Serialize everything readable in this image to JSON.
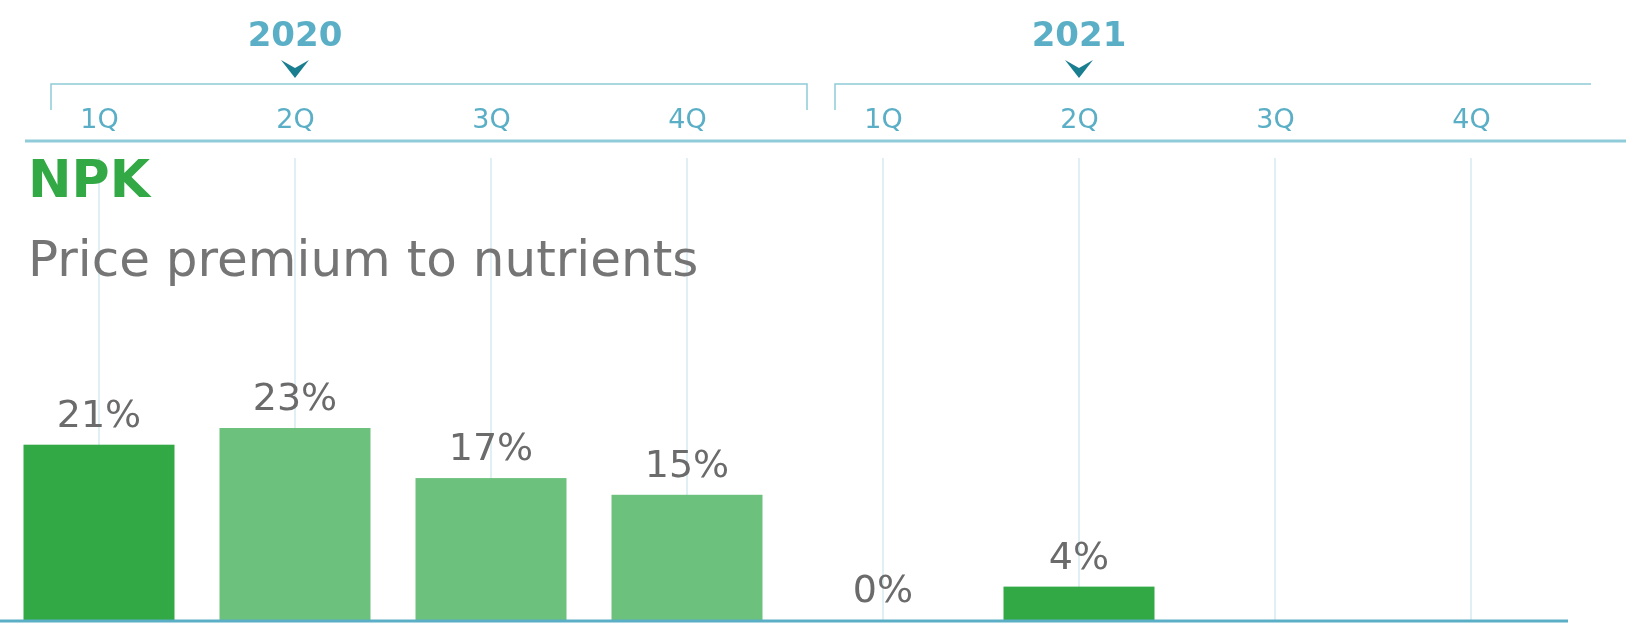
{
  "chart_data": {
    "type": "bar",
    "title": "NPK",
    "subtitle": "Price premium to nutrients",
    "categories": [
      "1Q",
      "2Q",
      "3Q",
      "4Q",
      "1Q",
      "2Q",
      "3Q",
      "4Q"
    ],
    "values": [
      21,
      23,
      17,
      15,
      0,
      4,
      null,
      null
    ],
    "colors": [
      "#33a946",
      "#6cc17c",
      "#6cc17c",
      "#6cc17c",
      "#33a946",
      "#33a946",
      null,
      null
    ],
    "value_labels": [
      "21%",
      "23%",
      "17%",
      "15%",
      "0%",
      "4%",
      null,
      null
    ],
    "annotations": [
      "2020",
      "2021"
    ],
    "grid": "x"
  }
}
